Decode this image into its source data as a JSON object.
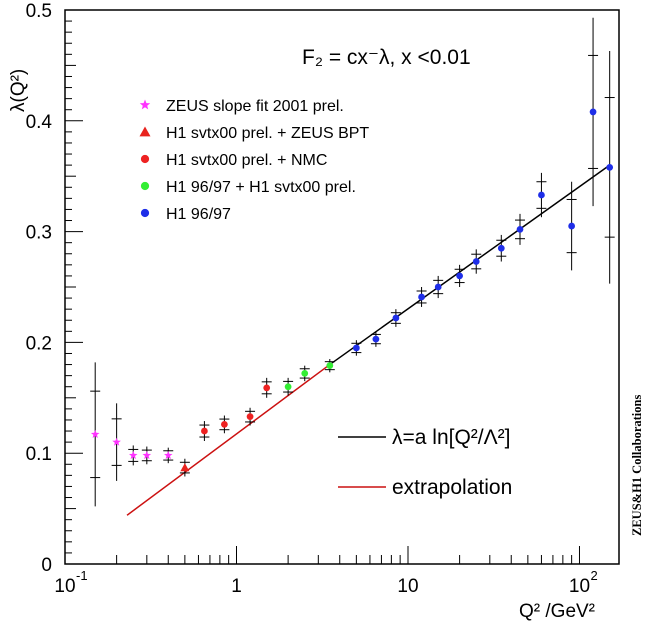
{
  "chart_data": {
    "type": "scatter",
    "formula": "F₂ = cx⁻λ,  x <0.01",
    "xlabel": "Q² /GeV²",
    "ylabel": "λ(Q²)",
    "xscale": "log",
    "xlim": [
      0.1,
      170
    ],
    "ylim": [
      0,
      0.5
    ],
    "y_ticks": [
      "0",
      "0.1",
      "0.2",
      "0.3",
      "0.4",
      "0.5"
    ],
    "x_ticks": [
      {
        "value": 0.1,
        "label": "10",
        "sup": "-1"
      },
      {
        "value": 1,
        "label": "1",
        "sup": ""
      },
      {
        "value": 10,
        "label": "10",
        "sup": ""
      },
      {
        "value": 100,
        "label": "10",
        "sup": "2"
      }
    ],
    "legend_position": "top-left",
    "side_label": "ZEUS&H1 Collaborations",
    "series": [
      {
        "name": "ZEUS slope fit 2001 prel.",
        "marker": "star",
        "color": "#ff33ff",
        "points": [
          {
            "x": 0.15,
            "y": 0.117,
            "err": 0.065
          },
          {
            "x": 0.2,
            "y": 0.11,
            "err": 0.035
          },
          {
            "x": 0.25,
            "y": 0.098,
            "err": 0.009
          },
          {
            "x": 0.3,
            "y": 0.098,
            "err": 0.008
          },
          {
            "x": 0.4,
            "y": 0.098,
            "err": 0.007
          }
        ]
      },
      {
        "name": "H1 svtx00 prel. + ZEUS BPT",
        "marker": "triangle",
        "color": "#e8231e",
        "points": [
          {
            "x": 0.5,
            "y": 0.087,
            "err": 0.008
          }
        ]
      },
      {
        "name": "H1 svtx00 prel. + NMC",
        "marker": "circle",
        "color": "#ee2222",
        "points": [
          {
            "x": 0.65,
            "y": 0.12,
            "err": 0.009
          },
          {
            "x": 0.85,
            "y": 0.126,
            "err": 0.008
          },
          {
            "x": 1.2,
            "y": 0.133,
            "err": 0.008
          },
          {
            "x": 1.5,
            "y": 0.159,
            "err": 0.009
          }
        ]
      },
      {
        "name": "H1 96/97 + H1 svtx00 prel.",
        "marker": "circle",
        "color": "#33ee33",
        "points": [
          {
            "x": 2.0,
            "y": 0.16,
            "err": 0.008
          },
          {
            "x": 2.5,
            "y": 0.172,
            "err": 0.007
          },
          {
            "x": 3.5,
            "y": 0.179,
            "err": 0.006
          }
        ]
      },
      {
        "name": "H1 96/97",
        "marker": "circle",
        "color": "#1e2ee8",
        "points": [
          {
            "x": 5,
            "y": 0.195,
            "err": 0.007
          },
          {
            "x": 6.5,
            "y": 0.203,
            "err": 0.007
          },
          {
            "x": 8.5,
            "y": 0.222,
            "err": 0.008
          },
          {
            "x": 12,
            "y": 0.241,
            "err": 0.009
          },
          {
            "x": 15,
            "y": 0.25,
            "err": 0.01
          },
          {
            "x": 20,
            "y": 0.26,
            "err": 0.01
          },
          {
            "x": 25,
            "y": 0.273,
            "err": 0.011
          },
          {
            "x": 35,
            "y": 0.285,
            "err": 0.012
          },
          {
            "x": 45,
            "y": 0.302,
            "err": 0.014
          },
          {
            "x": 60,
            "y": 0.333,
            "err": 0.02
          },
          {
            "x": 90,
            "y": 0.305,
            "err": 0.04
          },
          {
            "x": 120,
            "y": 0.408,
            "err": 0.085
          },
          {
            "x": 150,
            "y": 0.358,
            "err": 0.105
          }
        ]
      }
    ],
    "fit_curves": [
      {
        "name": "λ=a ln[Q²/Λ²]",
        "color": "#000000",
        "x": [
          3.5,
          150
        ],
        "y": [
          0.18,
          0.36
        ]
      },
      {
        "name": "extrapolation",
        "color": "#cc1111",
        "x": [
          0.23,
          3.5
        ],
        "y": [
          0.044,
          0.18
        ]
      }
    ]
  }
}
